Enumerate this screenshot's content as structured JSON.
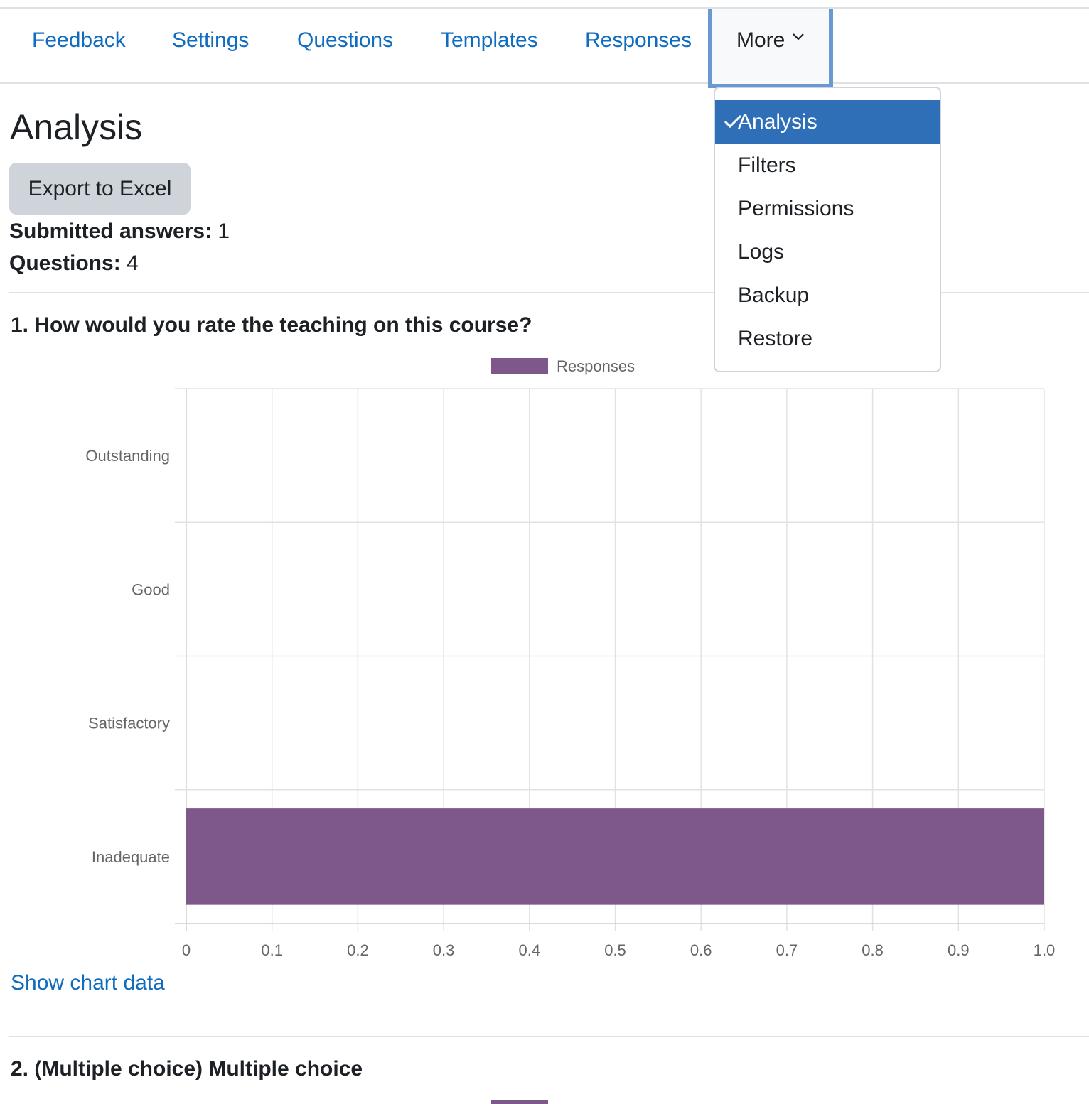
{
  "nav": {
    "tabs": [
      "Feedback",
      "Settings",
      "Questions",
      "Templates",
      "Responses"
    ],
    "more_label": "More"
  },
  "more_menu": {
    "items": [
      "Analysis",
      "Filters",
      "Permissions",
      "Logs",
      "Backup",
      "Restore"
    ],
    "selected": "Analysis"
  },
  "page": {
    "title": "Analysis",
    "export_label": "Export to Excel",
    "submitted_label": "Submitted answers:",
    "submitted_value": "1",
    "questions_label": "Questions:",
    "questions_value": "4"
  },
  "questions": [
    {
      "title": "1. How would you rate the teaching on this course?",
      "show_data_label": "Show chart data"
    },
    {
      "title": "2. (Multiple choice) Multiple choice"
    }
  ],
  "chart_data": {
    "type": "bar",
    "orientation": "horizontal",
    "categories": [
      "Outstanding",
      "Good",
      "Satisfactory",
      "Inadequate"
    ],
    "series": [
      {
        "name": "Responses",
        "values": [
          0,
          0,
          0,
          1
        ],
        "color": "#7f588b"
      }
    ],
    "xlim": [
      0,
      1.0
    ],
    "xticks": [
      "0",
      "0.1",
      "0.2",
      "0.3",
      "0.4",
      "0.5",
      "0.6",
      "0.7",
      "0.8",
      "0.9",
      "1.0"
    ],
    "grid": true,
    "legend": "top"
  },
  "colors": {
    "link": "#0f6cbf",
    "accent": "#2f6fb8",
    "bar": "#7f588b"
  }
}
